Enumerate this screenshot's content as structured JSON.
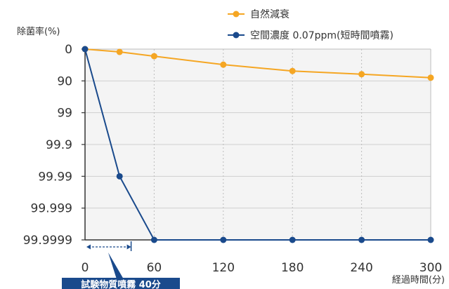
{
  "chart_data": {
    "type": "line",
    "ylabel": "除菌率(%)",
    "xlabel": "経過時間(分)",
    "x_ticks": [
      0,
      60,
      120,
      180,
      240,
      300
    ],
    "xlim": [
      0,
      300
    ],
    "y_ticks": [
      "0",
      "90",
      "99",
      "99.9",
      "99.99",
      "99.999",
      "99.9999"
    ],
    "y_scale": "log-reduction",
    "grid": true,
    "legend_position": "top",
    "series": [
      {
        "name": "自然減衰",
        "color": "#f5a623",
        "x": [
          0,
          30,
          60,
          120,
          180,
          240,
          300
        ],
        "y": [
          "0",
          "8",
          "20",
          "44",
          "62",
          "71",
          "81"
        ]
      },
      {
        "name": "空間濃度 0.07ppm(短時間噴霧)",
        "color": "#1a4a8c",
        "x": [
          0,
          30,
          60,
          120,
          180,
          240,
          300
        ],
        "y": [
          "0",
          "99.99",
          "99.9999",
          "99.9999",
          "99.9999",
          "99.9999",
          "99.9999"
        ]
      }
    ],
    "annotation": {
      "label": "試験物質噴霧 40分",
      "x_start": 0,
      "x_end": 40,
      "color": "#1a4a8c"
    }
  }
}
